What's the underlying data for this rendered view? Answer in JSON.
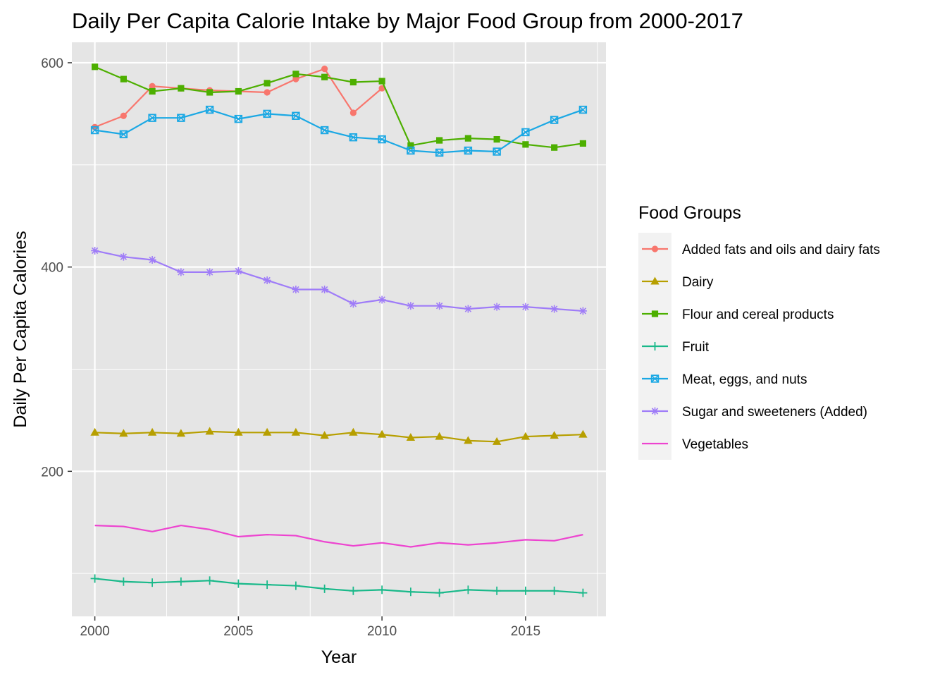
{
  "chart_data": {
    "type": "line",
    "title": "Daily Per Capita Calorie Intake by Major Food Group from 2000-2017",
    "xlabel": "Year",
    "ylabel": "Daily Per Capita Calories",
    "x": [
      2000,
      2001,
      2002,
      2003,
      2004,
      2005,
      2006,
      2007,
      2008,
      2009,
      2010,
      2011,
      2012,
      2013,
      2014,
      2015,
      2016,
      2017
    ],
    "xlim": [
      1999.2,
      2017.8
    ],
    "ylim": [
      58,
      620
    ],
    "x_ticks": [
      2000,
      2005,
      2010,
      2015
    ],
    "x_tick_labels": [
      "2000",
      "2005",
      "2010",
      "2015"
    ],
    "y_ticks": [
      200,
      400,
      600
    ],
    "y_tick_labels": [
      "200",
      "400",
      "600"
    ],
    "y_minor_ticks": [
      100,
      300,
      500
    ],
    "x_minor_ticks": [
      2002.5,
      2007.5,
      2012.5,
      2017.5
    ],
    "grid": true,
    "panel_background": "#e5e5e5",
    "grid_color": "#ffffff",
    "legend": {
      "title": "Food Groups",
      "position": "right"
    },
    "series": [
      {
        "name": "Added fats and oils and dairy fats",
        "color": "#f8766d",
        "marker": "circle",
        "values": [
          537,
          548,
          577,
          575,
          573,
          572,
          571,
          584,
          594,
          551,
          575,
          null,
          null,
          null,
          null,
          null,
          null,
          null
        ]
      },
      {
        "name": "Dairy",
        "color": "#b79f00",
        "marker": "triangle",
        "values": [
          238,
          237,
          238,
          237,
          239,
          238,
          238,
          238,
          235,
          238,
          236,
          233,
          234,
          230,
          229,
          234,
          235,
          236
        ]
      },
      {
        "name": "Flour and cereal products",
        "color": "#4daf00",
        "marker": "square",
        "values": [
          596,
          584,
          572,
          575,
          571,
          572,
          580,
          589,
          586,
          581,
          582,
          519,
          524,
          526,
          525,
          520,
          517,
          521
        ]
      },
      {
        "name": "Fruit",
        "color": "#1ab98a",
        "marker": "plus",
        "values": [
          95,
          92,
          91,
          92,
          93,
          90,
          89,
          88,
          85,
          83,
          84,
          82,
          81,
          84,
          83,
          83,
          83,
          81
        ]
      },
      {
        "name": "Meat, eggs, and nuts",
        "color": "#1ba8e4",
        "marker": "square-x",
        "values": [
          534,
          530,
          546,
          546,
          554,
          545,
          550,
          548,
          534,
          527,
          525,
          514,
          512,
          514,
          513,
          532,
          544,
          554
        ]
      },
      {
        "name": "Sugar and sweeteners (Added)",
        "color": "#9f7cf8",
        "marker": "asterisk",
        "values": [
          416,
          410,
          407,
          395,
          395,
          396,
          387,
          378,
          378,
          364,
          368,
          362,
          362,
          359,
          361,
          361,
          359,
          357
        ]
      },
      {
        "name": "Vegetables",
        "color": "#ed44d0",
        "marker": "none",
        "values": [
          147,
          146,
          141,
          147,
          143,
          136,
          138,
          137,
          131,
          127,
          130,
          126,
          130,
          128,
          130,
          133,
          132,
          138
        ]
      }
    ]
  }
}
